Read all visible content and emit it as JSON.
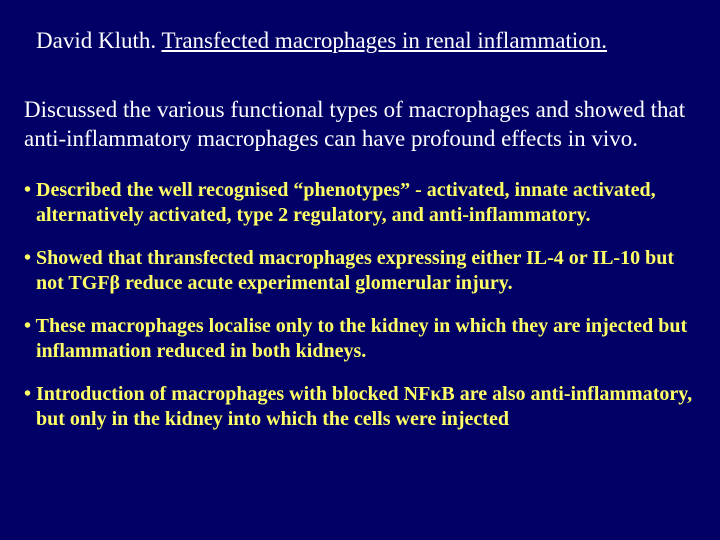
{
  "colors": {
    "background": "#000066",
    "title_text": "#ffffff",
    "intro_text": "#ffffff",
    "bullet_text": "#ffff66"
  },
  "typography": {
    "font_family": "Times New Roman",
    "title_fontsize": 23,
    "intro_fontsize": 23,
    "bullet_fontsize": 20,
    "bullet_weight": "bold"
  },
  "title": {
    "author": "David Kluth.",
    "topic": "Transfected macrophages in renal inflammation."
  },
  "intro": "Discussed the various functional types of macrophages and showed that anti-inflammatory macrophages can have profound effects in vivo.",
  "bullets": [
    "Described the well recognised “phenotypes” - activated, innate activated, alternatively activated, type 2 regulatory, and anti-inflammatory.",
    "Showed that thransfected macrophages expressing either IL-4 or IL-10 but not TGFβ reduce acute experimental glomerular injury.",
    "These macrophages localise only to the kidney in which they are injected but inflammation reduced in both kidneys.",
    "Introduction of macrophages with blocked NFκB are also anti-inflammatory, but only in the kidney into which the cells were injected"
  ]
}
